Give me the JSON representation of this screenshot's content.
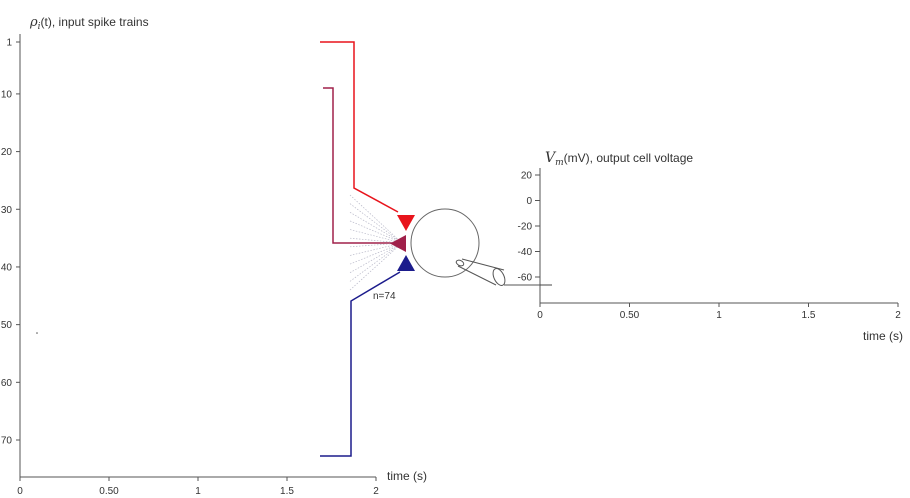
{
  "input_plot": {
    "title_symbol": "ρ",
    "title_sub": "i",
    "title_arg": "(t)",
    "title_rest": ", input spike trains",
    "y_ticks": [
      "1",
      "10",
      "20",
      "30",
      "40",
      "50",
      "60",
      "70"
    ],
    "x_ticks": [
      "0",
      "0.50",
      "1",
      "1.5",
      "2"
    ],
    "x_label": "time (s)"
  },
  "output_plot": {
    "title_symbol": "V",
    "title_sub": "m",
    "title_rest": "(mV), output cell voltage",
    "y_ticks": [
      "20",
      "0",
      "-20",
      "-40",
      "-60"
    ],
    "x_ticks": [
      "0",
      "0.50",
      "1",
      "1.5",
      "2"
    ],
    "x_label": "time (s)"
  },
  "neuron": {
    "synapse_count_label": "n=74"
  },
  "colors": {
    "excitatory": "#e8141c",
    "mixed": "#a0204a",
    "inhibitory": "#1c1c8c",
    "axis": "#555555"
  }
}
